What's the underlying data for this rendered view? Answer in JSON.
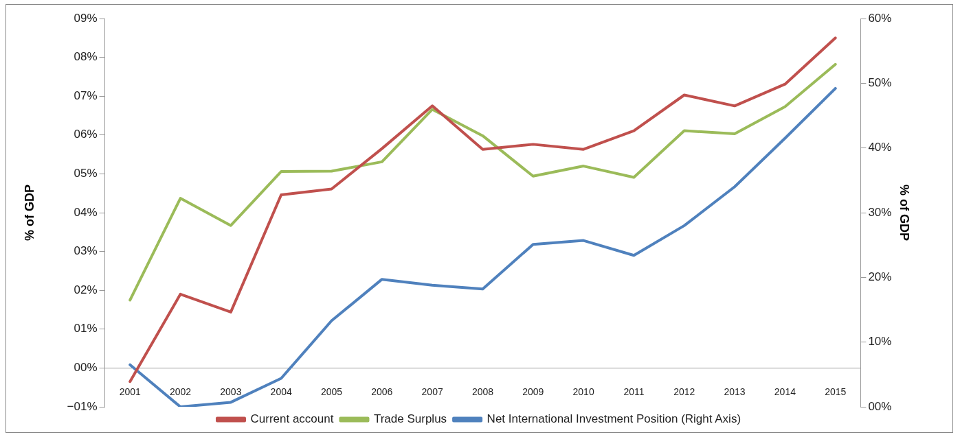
{
  "chart_data": {
    "type": "line",
    "ylabel": "% of GDP",
    "y2label": "% of GDP",
    "categories": [
      "2001",
      "2002",
      "2003",
      "2004",
      "2005",
      "2006",
      "2007",
      "2008",
      "2009",
      "2010",
      "2011",
      "2012",
      "2013",
      "2014",
      "2015"
    ],
    "series": [
      {
        "name": "Current account",
        "color": "#c0504d",
        "values": [
          -0.35,
          1.9,
          1.44,
          4.46,
          4.61,
          5.65,
          6.75,
          5.63,
          5.76,
          5.63,
          6.11,
          7.03,
          6.75,
          7.31,
          8.5
        ]
      },
      {
        "name": "Trade Surplus",
        "color": "#9bbb59",
        "values": [
          1.75,
          4.37,
          3.67,
          5.06,
          5.07,
          5.31,
          6.66,
          5.98,
          4.94,
          5.2,
          4.91,
          6.11,
          6.03,
          6.73,
          7.82
        ]
      },
      {
        "name": "Net International Investment Position (Right Axis)",
        "color": "#4f81bd",
        "axis": "y2",
        "values": [
          6.5,
          0,
          0.7,
          4.4,
          13.3,
          19.7,
          18.8,
          18.2,
          25.1,
          25.7,
          23.4,
          28,
          34,
          41.5,
          49.2
        ]
      }
    ],
    "ylim": [
      -1,
      9
    ],
    "yticks": [
      {
        "value": -1,
        "label": "−01%"
      },
      {
        "value": 0,
        "label": "00%"
      },
      {
        "value": 1,
        "label": "01%"
      },
      {
        "value": 2,
        "label": "02%"
      },
      {
        "value": 3,
        "label": "03%"
      },
      {
        "value": 4,
        "label": "04%"
      },
      {
        "value": 5,
        "label": "05%"
      },
      {
        "value": 6,
        "label": "06%"
      },
      {
        "value": 7,
        "label": "07%"
      },
      {
        "value": 8,
        "label": "08%"
      },
      {
        "value": 9,
        "label": "09%"
      }
    ],
    "y2lim": [
      0,
      60
    ],
    "y2ticks": [
      {
        "value": 0,
        "label": "00%"
      },
      {
        "value": 10,
        "label": "10%"
      },
      {
        "value": 20,
        "label": "20%"
      },
      {
        "value": 30,
        "label": "30%"
      },
      {
        "value": 40,
        "label": "40%"
      },
      {
        "value": 50,
        "label": "50%"
      },
      {
        "value": 60,
        "label": "60%"
      }
    ],
    "grid": false,
    "legend": "bottom",
    "marker": "none",
    "line_style": "solid"
  }
}
